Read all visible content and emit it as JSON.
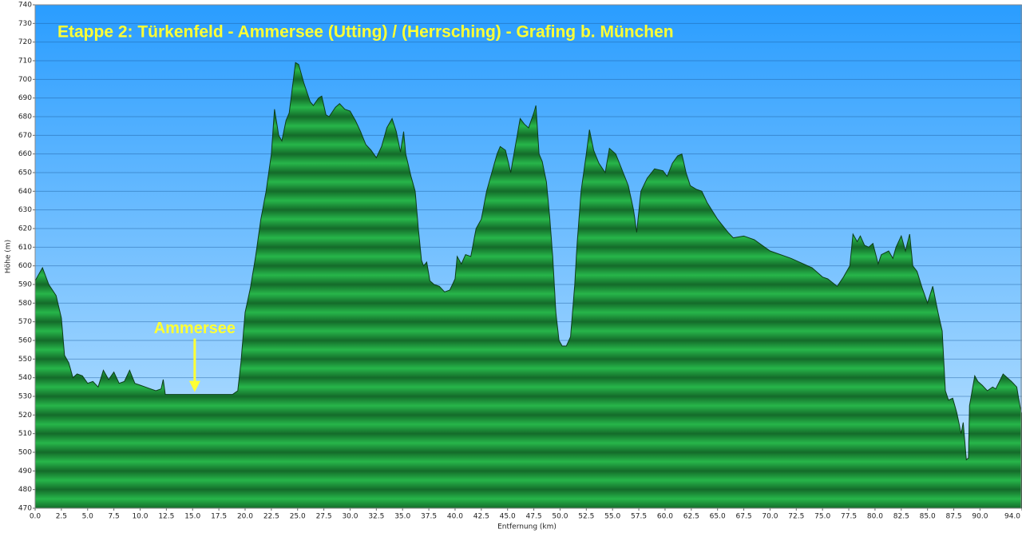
{
  "chart_data": {
    "type": "area",
    "title": "Etappe 2: Türkenfeld - Ammersee (Utting) / (Herrsching) - Grafing b. München",
    "x_label": "Entfernung   (km)",
    "y_label": "Höhe (m)",
    "annotations": [
      {
        "text": "Ammersee",
        "x": 15.2,
        "y": 531
      }
    ],
    "color": "#1fa340",
    "grid": true,
    "xlim": [
      0,
      94
    ],
    "ylim": [
      470,
      740
    ],
    "xticks": [
      {
        "value": 0,
        "label": "0.0"
      },
      2.5,
      {
        "value": 5,
        "label": "5.0"
      },
      7.5,
      {
        "value": 10,
        "label": "10.0"
      },
      12.5,
      {
        "value": 15,
        "label": "15.0"
      },
      17.5,
      {
        "value": 20,
        "label": "20.0"
      },
      22.5,
      {
        "value": 25,
        "label": "25.0"
      },
      27.5,
      {
        "value": 30,
        "label": "30.0"
      },
      32.5,
      {
        "value": 35,
        "label": "35.0"
      },
      37.5,
      {
        "value": 40,
        "label": "40.0"
      },
      42.5,
      {
        "value": 45,
        "label": "45.0"
      },
      47.5,
      {
        "value": 50,
        "label": "50.0"
      },
      52.5,
      {
        "value": 55,
        "label": "55.0"
      },
      57.5,
      {
        "value": 60,
        "label": "60.0"
      },
      62.5,
      {
        "value": 65,
        "label": "65.0"
      },
      67.5,
      {
        "value": 70,
        "label": "70.0"
      },
      72.5,
      {
        "value": 75,
        "label": "75.0"
      },
      77.5,
      {
        "value": 80,
        "label": "80.0"
      },
      82.5,
      {
        "value": 85,
        "label": "85.0"
      },
      87.5,
      {
        "value": 90,
        "label": "90.0"
      },
      {
        "value": 94,
        "label": "94.0"
      }
    ],
    "yticks": [
      470,
      480,
      490,
      500,
      510,
      520,
      530,
      540,
      550,
      560,
      570,
      580,
      590,
      600,
      610,
      620,
      630,
      640,
      650,
      660,
      670,
      680,
      690,
      700,
      710,
      720,
      730,
      740
    ],
    "x": [
      0,
      0.7,
      1.3,
      2,
      2.5,
      2.8,
      3.2,
      3.6,
      4,
      4.5,
      5,
      5.5,
      6,
      6.5,
      7,
      7.5,
      8,
      8.5,
      9,
      9.5,
      10,
      10.5,
      11,
      11.5,
      12,
      12.2,
      12.4,
      18.8,
      19.3,
      19.6,
      20,
      20.5,
      21,
      21.5,
      22,
      22.5,
      22.8,
      23.2,
      23.5,
      23.9,
      24.2,
      24.6,
      24.8,
      25.1,
      25.6,
      26.2,
      26.5,
      27,
      27.3,
      27.7,
      28,
      28.6,
      29,
      29.5,
      30,
      30.5,
      31,
      31.5,
      32,
      32.5,
      33,
      33.5,
      34,
      34.4,
      34.8,
      35.1,
      35.3,
      35.8,
      36.2,
      36.5,
      36.8,
      37,
      37.3,
      37.6,
      38,
      38.5,
      39,
      39.5,
      40,
      40.2,
      40.6,
      41,
      41.5,
      42,
      42.5,
      43,
      43.5,
      44,
      44.3,
      44.8,
      45.3,
      45.7,
      46.2,
      46.6,
      47,
      47.5,
      47.7,
      48,
      48.3,
      48.7,
      49,
      49.3,
      49.6,
      49.9,
      50.2,
      50.6,
      51,
      51.4,
      51.6,
      52,
      52.5,
      52.8,
      53.2,
      53.7,
      54.3,
      54.7,
      55.3,
      55.8,
      56.5,
      57,
      57.3,
      57.7,
      58.3,
      59,
      59.8,
      60.2,
      60.7,
      61.2,
      61.6,
      62,
      62.4,
      63,
      63.5,
      64,
      65,
      66,
      66.5,
      67.5,
      68.5,
      70,
      72,
      74,
      75,
      75.5,
      76.4,
      77,
      77.6,
      77.9,
      78.3,
      78.6,
      79,
      79.4,
      79.8,
      80.3,
      80.6,
      81.3,
      81.7,
      82,
      82.5,
      82.9,
      83.3,
      83.6,
      84,
      84.5,
      85,
      85.5,
      86,
      86.4,
      86.7,
      87,
      87.4,
      87.8,
      88.2,
      88.4,
      88.7,
      88.9,
      89,
      89.5,
      89.8,
      90.2,
      90.7,
      91.2,
      91.5,
      92.2,
      93,
      93.5,
      93.8,
      94
    ],
    "values": [
      592,
      599,
      590,
      584,
      572,
      552,
      548,
      540,
      542,
      541,
      537,
      538,
      535,
      544,
      539,
      543,
      537,
      538,
      544,
      537,
      536,
      535,
      534,
      533,
      534,
      539,
      531,
      531,
      533,
      548,
      575,
      588,
      605,
      625,
      640,
      660,
      684,
      670,
      667,
      678,
      682,
      700,
      709,
      708,
      698,
      688,
      686,
      690,
      691,
      681,
      680,
      685,
      687,
      684,
      683,
      678,
      672,
      665,
      662,
      658,
      664,
      674,
      679,
      672,
      661,
      672,
      660,
      648,
      640,
      620,
      603,
      600,
      602,
      592,
      590,
      589,
      586,
      587,
      593,
      605,
      601,
      606,
      605,
      620,
      625,
      640,
      650,
      660,
      664,
      662,
      650,
      663,
      679,
      676,
      674,
      682,
      686,
      660,
      656,
      645,
      627,
      605,
      575,
      560,
      557,
      557,
      562,
      590,
      610,
      640,
      660,
      673,
      662,
      655,
      650,
      663,
      660,
      653,
      643,
      630,
      618,
      640,
      647,
      652,
      651,
      648,
      655,
      659,
      660,
      650,
      643,
      641,
      640,
      634,
      625,
      618,
      615,
      616,
      614,
      608,
      604,
      599,
      594,
      593,
      589,
      594,
      600,
      617,
      613,
      616,
      611,
      610,
      612,
      601,
      606,
      608,
      604,
      610,
      616,
      608,
      617,
      600,
      597,
      588,
      580,
      589,
      575,
      565,
      533,
      528,
      529,
      521,
      510,
      516,
      496,
      497,
      525,
      541,
      538,
      536,
      533,
      535,
      534,
      542,
      538,
      535,
      525,
      520
    ]
  }
}
